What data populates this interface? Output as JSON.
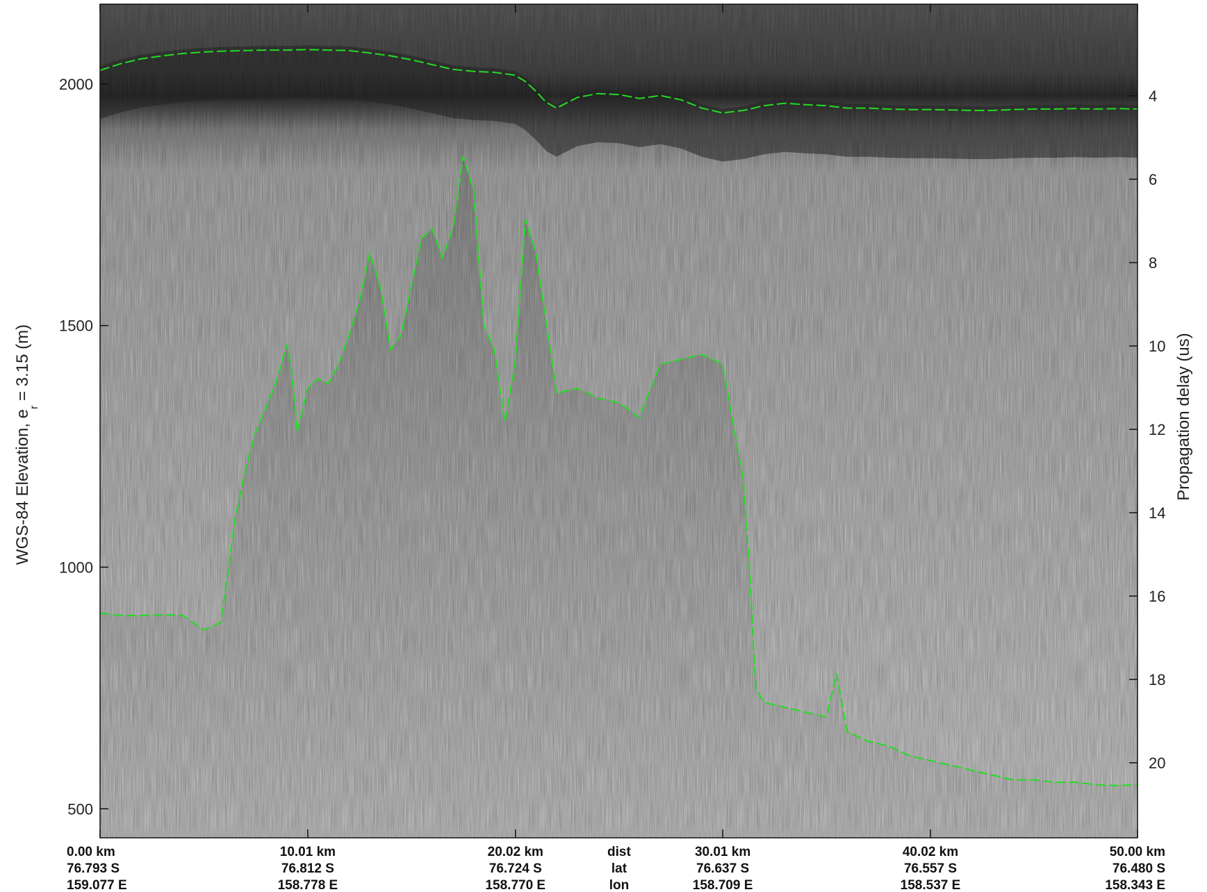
{
  "chart_data": {
    "type": "line",
    "title": "",
    "ylabel_left": "WGS-84 Elevation, e",
    "ylabel_left_sub": "r",
    "ylabel_left_suffix": " = 3.15 (m)",
    "ylabel_right": "Propagation delay (us)",
    "left_axis": {
      "ylim": [
        440,
        2165
      ],
      "ticks": [
        500,
        1000,
        1500,
        2000
      ]
    },
    "right_axis": {
      "ylim": [
        1.8,
        21.8
      ],
      "ticks": [
        4,
        6,
        8,
        10,
        12,
        14,
        16,
        18,
        20
      ]
    },
    "xlim": [
      0,
      50
    ],
    "x_ticks": [
      {
        "x": 0,
        "dist": "0.00 km",
        "lat": "76.793 S",
        "lon": "159.077 E"
      },
      {
        "x": 10.01,
        "dist": "10.01 km",
        "lat": "76.812 S",
        "lon": "158.778 E"
      },
      {
        "x": 20.02,
        "dist": "20.02 km",
        "lat": "76.724 S",
        "lon": "158.770 E"
      },
      {
        "x": 30.01,
        "dist": "30.01 km",
        "lat": "76.637 S",
        "lon": "158.709 E"
      },
      {
        "x": 40.02,
        "dist": "40.02 km",
        "lat": "76.557 S",
        "lon": "158.537 E"
      },
      {
        "x": 50.0,
        "dist": "50.00 km",
        "lat": "76.480 S",
        "lon": "158.343 E"
      }
    ],
    "x_row_labels": {
      "dist": "dist",
      "lat": "lat",
      "lon": "lon"
    },
    "line_color": "#22dd22",
    "series": [
      {
        "role": "surface",
        "x": [
          0,
          1,
          2,
          3,
          4,
          5,
          6,
          7,
          8,
          9,
          10,
          11,
          12,
          13,
          14,
          15,
          16,
          17,
          18,
          19,
          20,
          20.5,
          21,
          21.5,
          22,
          23,
          24,
          25,
          26,
          27,
          28,
          29,
          30,
          31,
          32,
          33,
          34,
          35,
          36,
          37,
          38,
          39,
          40,
          41,
          42,
          43,
          44,
          45,
          46,
          47,
          48,
          49,
          50
        ],
        "y": [
          2028,
          2042,
          2052,
          2058,
          2063,
          2066,
          2068,
          2069,
          2070,
          2070,
          2071,
          2070,
          2069,
          2064,
          2058,
          2050,
          2040,
          2030,
          2026,
          2024,
          2018,
          2005,
          1985,
          1962,
          1950,
          1972,
          1980,
          1978,
          1970,
          1976,
          1967,
          1950,
          1940,
          1945,
          1955,
          1960,
          1957,
          1955,
          1950,
          1950,
          1948,
          1947,
          1947,
          1946,
          1945,
          1945,
          1947,
          1948,
          1948,
          1949,
          1948,
          1949,
          1948
        ]
      },
      {
        "role": "bed",
        "x": [
          0,
          1,
          2,
          3,
          4,
          5,
          5.8,
          6.2,
          6.5,
          7,
          7.5,
          8,
          8.5,
          9,
          9.2,
          9.5,
          10,
          10.5,
          11,
          11.5,
          12,
          12.5,
          13,
          13.5,
          14,
          14.5,
          15,
          15.5,
          16,
          16.5,
          17,
          17.5,
          18,
          18.5,
          19,
          19.5,
          20,
          20.5,
          21,
          22,
          23,
          24,
          25,
          26,
          27,
          28,
          29,
          30,
          30.5,
          31,
          31.3,
          31.6,
          32,
          33,
          34,
          35,
          35.5,
          36,
          36.5,
          37,
          38,
          39,
          40,
          41,
          42,
          43,
          44,
          45,
          46,
          47,
          48,
          49,
          50
        ],
        "y": [
          905,
          900,
          900,
          902,
          900,
          870,
          885,
          1000,
          1100,
          1200,
          1280,
          1330,
          1385,
          1460,
          1420,
          1280,
          1370,
          1390,
          1380,
          1420,
          1480,
          1550,
          1650,
          1580,
          1450,
          1480,
          1580,
          1680,
          1700,
          1640,
          1700,
          1850,
          1780,
          1500,
          1450,
          1300,
          1420,
          1720,
          1650,
          1360,
          1370,
          1350,
          1340,
          1310,
          1420,
          1430,
          1440,
          1420,
          1300,
          1180,
          1000,
          750,
          720,
          710,
          700,
          690,
          780,
          660,
          650,
          640,
          630,
          610,
          600,
          590,
          580,
          570,
          560,
          560,
          555,
          555,
          550,
          548,
          550
        ]
      }
    ]
  }
}
